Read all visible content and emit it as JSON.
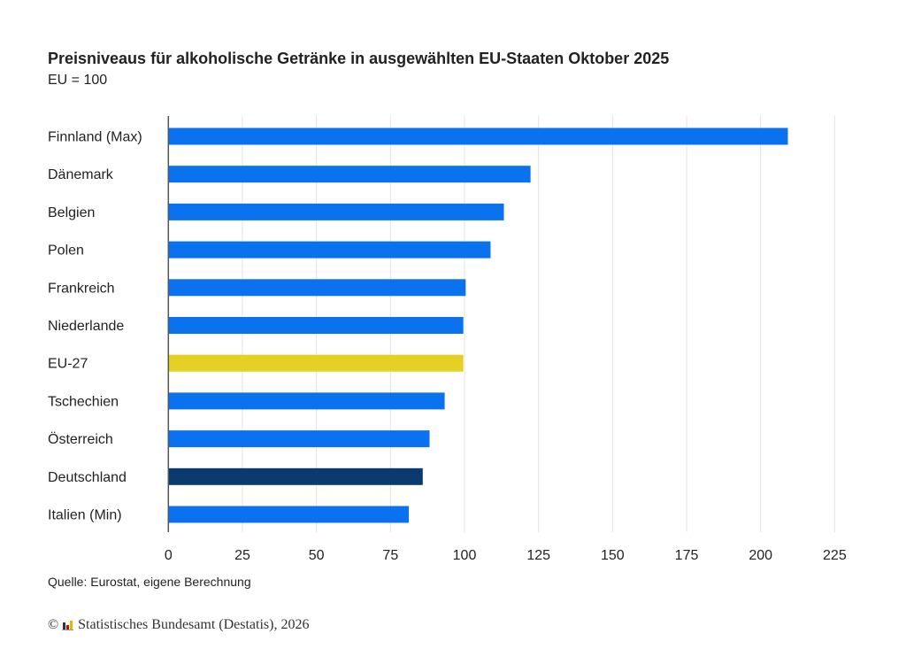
{
  "chart_data": {
    "type": "bar",
    "orientation": "horizontal",
    "title": "Preisniveaus für alkoholische Getränke in ausgewählten EU-Staaten Oktober 2025",
    "subtitle": "EU = 100",
    "categories": [
      "Finnland (Max)",
      "Dänemark",
      "Belgien",
      "Polen",
      "Frankreich",
      "Niederlande",
      "EU-27",
      "Tschechien",
      "Österreich",
      "Deutschland",
      "Italien (Min)"
    ],
    "values": [
      209.2,
      122.3,
      113.3,
      108.8,
      100.4,
      99.6,
      99.6,
      93.3,
      88.2,
      85.9,
      81.2
    ],
    "colors": [
      "#0a72ef",
      "#0a72ef",
      "#0a72ef",
      "#0a72ef",
      "#0a72ef",
      "#0a72ef",
      "#e5d024",
      "#0a72ef",
      "#0a72ef",
      "#0a3a70",
      "#0a72ef"
    ],
    "xticks": [
      0,
      25,
      50,
      75,
      100,
      125,
      150,
      175,
      200,
      225
    ],
    "xlim": [
      0,
      230
    ],
    "grid": true,
    "xlabel": "",
    "ylabel": ""
  },
  "source": "Quelle: Eurostat, eigene Berechnung",
  "copyright": "Statistisches Bundesamt (Destatis), 2026"
}
